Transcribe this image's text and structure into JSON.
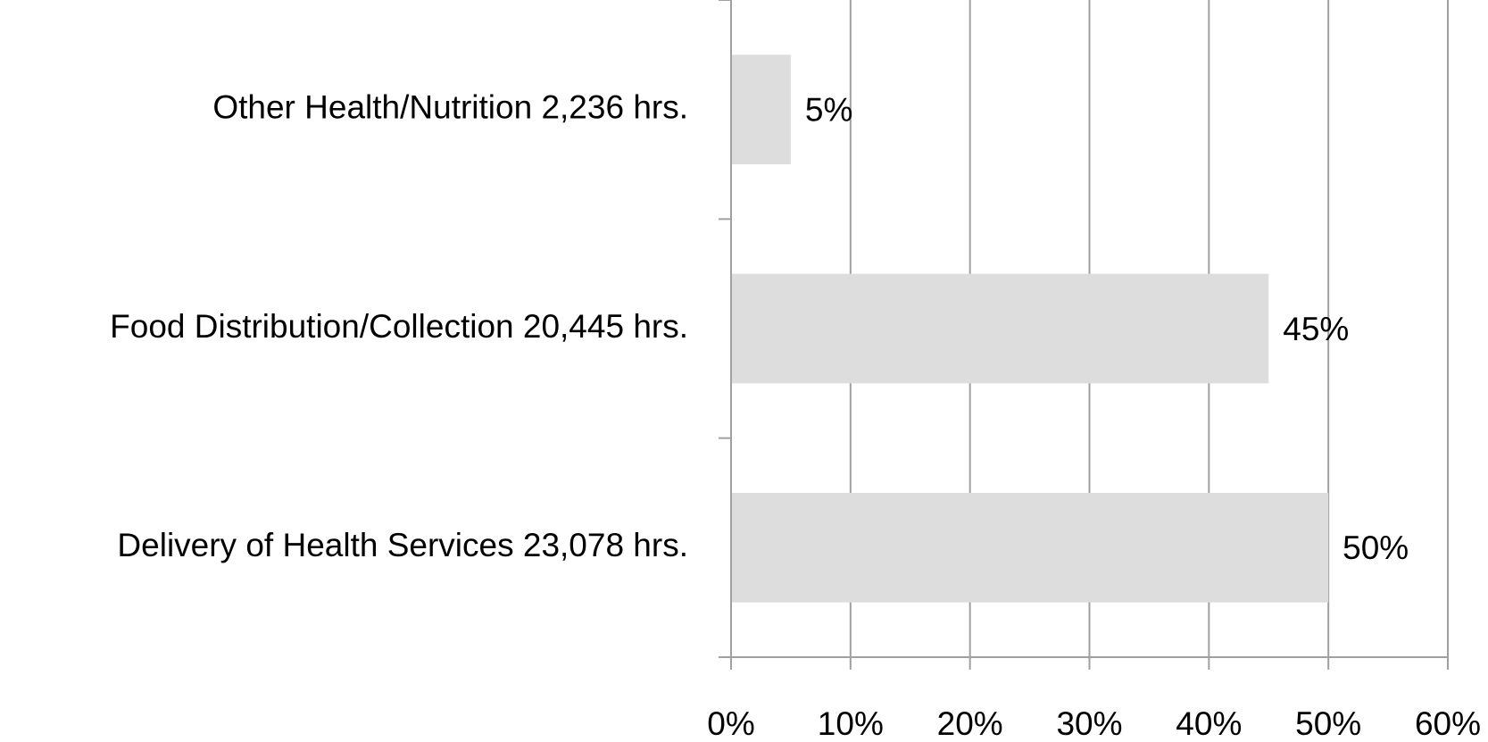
{
  "chart_data": {
    "type": "bar",
    "orientation": "horizontal",
    "categories": [
      "Other Health/Nutrition 2,236 hrs.",
      "Food Distribution/Collection 20,445 hrs.",
      "Delivery of Health Services 23,078 hrs."
    ],
    "values": [
      5,
      45,
      50
    ],
    "value_labels": [
      "5%",
      "45%",
      "50%"
    ],
    "color": "#dddddd",
    "xlim": [
      0,
      60
    ],
    "xticks": [
      {
        "value": 0,
        "label": "0%"
      },
      {
        "value": 10,
        "label": "10%"
      },
      {
        "value": 20,
        "label": "20%"
      },
      {
        "value": 30,
        "label": "30%"
      },
      {
        "value": 40,
        "label": "40%"
      },
      {
        "value": 50,
        "label": "50%"
      },
      {
        "value": 60,
        "label": "60%"
      }
    ],
    "grid": true
  }
}
